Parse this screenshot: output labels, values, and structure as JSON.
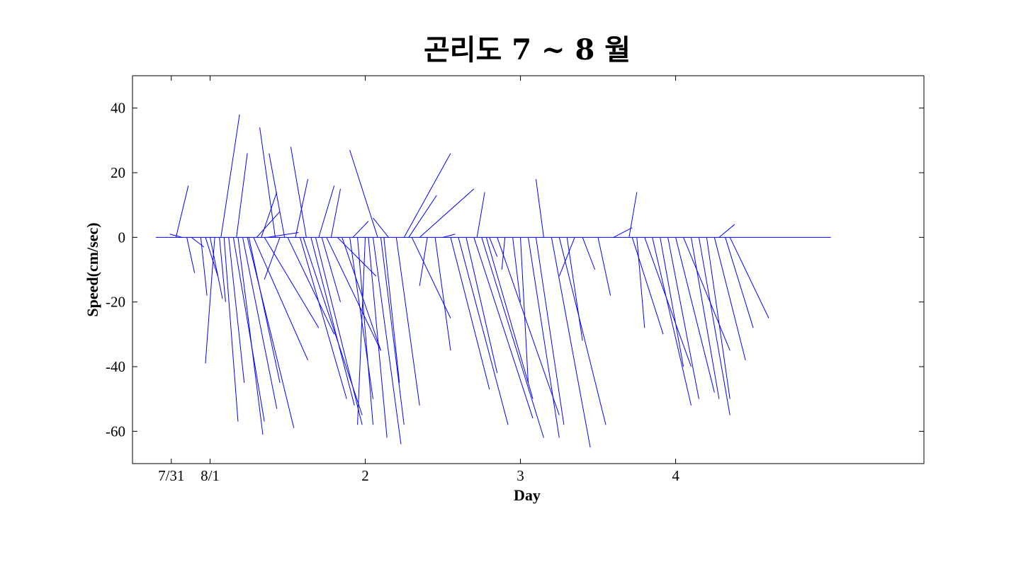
{
  "chart_data": {
    "type": "stick-plot",
    "title": "곤리도  7 ~ 8 월",
    "xlabel": "Day",
    "ylabel": "Speed(cm/sec)",
    "xlim": [
      -0.5,
      4.6
    ],
    "ylim": [
      -70,
      50
    ],
    "grid": false,
    "line_color": "#0000ff",
    "xticks": [
      {
        "value": -0.25,
        "label": "7/31"
      },
      {
        "value": 0.0,
        "label": "8/1"
      },
      {
        "value": 1.0,
        "label": "2"
      },
      {
        "value": 2.0,
        "label": "3"
      },
      {
        "value": 3.0,
        "label": "4"
      }
    ],
    "yticks": [
      {
        "value": -60,
        "label": "-60"
      },
      {
        "value": -40,
        "label": "-40"
      },
      {
        "value": -20,
        "label": "-20"
      },
      {
        "value": 0,
        "label": "0"
      },
      {
        "value": 20,
        "label": "20"
      },
      {
        "value": 40,
        "label": "40"
      }
    ],
    "baseline": {
      "start": -0.35,
      "end": 4.0
    },
    "x_unit_days": true,
    "sticks": [
      {
        "t": -0.18,
        "u": -0.08,
        "v": 1.0
      },
      {
        "t": -0.22,
        "u": 0.08,
        "v": 16.0
      },
      {
        "t": -0.15,
        "u": 0.05,
        "v": -11.0
      },
      {
        "t": -0.12,
        "u": 0.08,
        "v": -3.0
      },
      {
        "t": -0.06,
        "u": 0.04,
        "v": -18.0
      },
      {
        "t": -0.03,
        "u": 0.08,
        "v": -12.0
      },
      {
        "t": 0.0,
        "u": 0.08,
        "v": -19.0
      },
      {
        "t": 0.03,
        "u": -0.06,
        "v": -39.0
      },
      {
        "t": 0.06,
        "u": 0.04,
        "v": -20.0
      },
      {
        "t": 0.07,
        "u": 0.12,
        "v": 38.0
      },
      {
        "t": 0.09,
        "u": 0.09,
        "v": -57.0
      },
      {
        "t": 0.12,
        "u": 0.1,
        "v": -45.0
      },
      {
        "t": 0.15,
        "u": 0.2,
        "v": -57.0
      },
      {
        "t": 0.17,
        "u": 0.07,
        "v": 26.0
      },
      {
        "t": 0.18,
        "u": 0.16,
        "v": -61.0
      },
      {
        "t": 0.21,
        "u": 0.22,
        "v": -53.0
      },
      {
        "t": 0.24,
        "u": 0.3,
        "v": -59.0
      },
      {
        "t": 0.25,
        "u": 0.2,
        "v": -45.0
      },
      {
        "t": 0.28,
        "u": 0.35,
        "v": -38.0
      },
      {
        "t": 0.3,
        "u": 0.15,
        "v": 8.0
      },
      {
        "t": 0.33,
        "u": 0.1,
        "v": 14.0
      },
      {
        "t": 0.35,
        "u": 0.35,
        "v": -28.0
      },
      {
        "t": 0.37,
        "u": 0.2,
        "v": 1.5
      },
      {
        "t": 0.42,
        "u": -0.1,
        "v": 34.0
      },
      {
        "t": 0.45,
        "u": -0.1,
        "v": -13.0
      },
      {
        "t": 0.48,
        "u": -0.1,
        "v": 26.0
      },
      {
        "t": 0.5,
        "u": 0.3,
        "v": -30.0
      },
      {
        "t": 0.55,
        "u": 0.08,
        "v": 18.0
      },
      {
        "t": 0.58,
        "u": 0.3,
        "v": -50.0
      },
      {
        "t": 0.6,
        "u": 0.38,
        "v": -55.0
      },
      {
        "t": 0.62,
        "u": -0.1,
        "v": 28.0
      },
      {
        "t": 0.65,
        "u": 0.28,
        "v": -52.0
      },
      {
        "t": 0.68,
        "u": 0.3,
        "v": -58.0
      },
      {
        "t": 0.7,
        "u": 0.1,
        "v": 16.0
      },
      {
        "t": 0.72,
        "u": 0.12,
        "v": -20.0
      },
      {
        "t": 0.75,
        "u": 0.35,
        "v": -35.0
      },
      {
        "t": 0.78,
        "u": 0.06,
        "v": 15.0
      },
      {
        "t": 0.82,
        "u": 0.25,
        "v": -12.0
      },
      {
        "t": 0.85,
        "u": 0.25,
        "v": -35.0
      },
      {
        "t": 0.9,
        "u": 0.15,
        "v": -50.0
      },
      {
        "t": 0.92,
        "u": 0.1,
        "v": 5.0
      },
      {
        "t": 0.95,
        "u": 0.1,
        "v": -58.0
      },
      {
        "t": 1.0,
        "u": -0.05,
        "v": -58.0
      },
      {
        "t": 1.02,
        "u": 0.12,
        "v": -62.0
      },
      {
        "t": 1.05,
        "u": 0.18,
        "v": -64.0
      },
      {
        "t": 1.08,
        "u": -0.18,
        "v": 27.0
      },
      {
        "t": 1.1,
        "u": 0.15,
        "v": -58.0
      },
      {
        "t": 1.12,
        "u": 0.1,
        "v": -45.0
      },
      {
        "t": 1.15,
        "u": -0.1,
        "v": 6.0
      },
      {
        "t": 1.2,
        "u": 0.15,
        "v": -52.0
      },
      {
        "t": 1.25,
        "u": 0.3,
        "v": 26.0
      },
      {
        "t": 1.28,
        "u": 0.18,
        "v": 13.0
      },
      {
        "t": 1.3,
        "u": 0.25,
        "v": -25.0
      },
      {
        "t": 1.35,
        "u": 0.35,
        "v": 15.0
      },
      {
        "t": 1.4,
        "u": -0.05,
        "v": -15.0
      },
      {
        "t": 1.45,
        "u": 0.1,
        "v": -35.0
      },
      {
        "t": 1.5,
        "u": 0.08,
        "v": 1.0
      },
      {
        "t": 1.55,
        "u": 0.25,
        "v": -47.0
      },
      {
        "t": 1.6,
        "u": 0.32,
        "v": -58.0
      },
      {
        "t": 1.65,
        "u": 0.2,
        "v": -42.0
      },
      {
        "t": 1.7,
        "u": 0.38,
        "v": -56.0
      },
      {
        "t": 1.72,
        "u": 0.05,
        "v": 14.0
      },
      {
        "t": 1.75,
        "u": 0.4,
        "v": -62.0
      },
      {
        "t": 1.78,
        "u": 0.3,
        "v": -50.0
      },
      {
        "t": 1.8,
        "u": 0.05,
        "v": -6.0
      },
      {
        "t": 1.85,
        "u": 0.4,
        "v": -55.0
      },
      {
        "t": 1.9,
        "u": -0.02,
        "v": -10.0
      },
      {
        "t": 1.95,
        "u": 0.05,
        "v": -20.0
      },
      {
        "t": 2.0,
        "u": 0.05,
        "v": -45.0
      },
      {
        "t": 2.05,
        "u": 0.2,
        "v": -62.0
      },
      {
        "t": 2.1,
        "u": 0.18,
        "v": -58.0
      },
      {
        "t": 2.15,
        "u": -0.05,
        "v": 18.0
      },
      {
        "t": 2.2,
        "u": 0.25,
        "v": -65.0
      },
      {
        "t": 2.25,
        "u": 0.3,
        "v": -58.0
      },
      {
        "t": 2.3,
        "u": 0.1,
        "v": -32.0
      },
      {
        "t": 2.35,
        "u": -0.1,
        "v": -12.0
      },
      {
        "t": 2.4,
        "u": 0.08,
        "v": -10.0
      },
      {
        "t": 2.5,
        "u": 0.08,
        "v": -18.0
      },
      {
        "t": 2.6,
        "u": 0.12,
        "v": 3.0
      },
      {
        "t": 2.7,
        "u": 0.05,
        "v": 14.0
      },
      {
        "t": 2.72,
        "u": 0.2,
        "v": -30.0
      },
      {
        "t": 2.75,
        "u": 0.05,
        "v": -28.0
      },
      {
        "t": 2.8,
        "u": 0.3,
        "v": -40.0
      },
      {
        "t": 2.85,
        "u": 0.25,
        "v": -52.0
      },
      {
        "t": 2.9,
        "u": 0.15,
        "v": -40.0
      },
      {
        "t": 2.95,
        "u": 0.2,
        "v": -50.0
      },
      {
        "t": 3.0,
        "u": 0.25,
        "v": -48.0
      },
      {
        "t": 3.05,
        "u": 0.3,
        "v": -35.0
      },
      {
        "t": 3.1,
        "u": 0.18,
        "v": -50.0
      },
      {
        "t": 3.15,
        "u": 0.2,
        "v": -55.0
      },
      {
        "t": 3.2,
        "u": 0.15,
        "v": -50.0
      },
      {
        "t": 3.25,
        "u": 0.2,
        "v": -38.0
      },
      {
        "t": 3.28,
        "u": 0.1,
        "v": 4.0
      },
      {
        "t": 3.32,
        "u": 0.18,
        "v": -28.0
      },
      {
        "t": 3.35,
        "u": 0.25,
        "v": -25.0
      }
    ]
  }
}
